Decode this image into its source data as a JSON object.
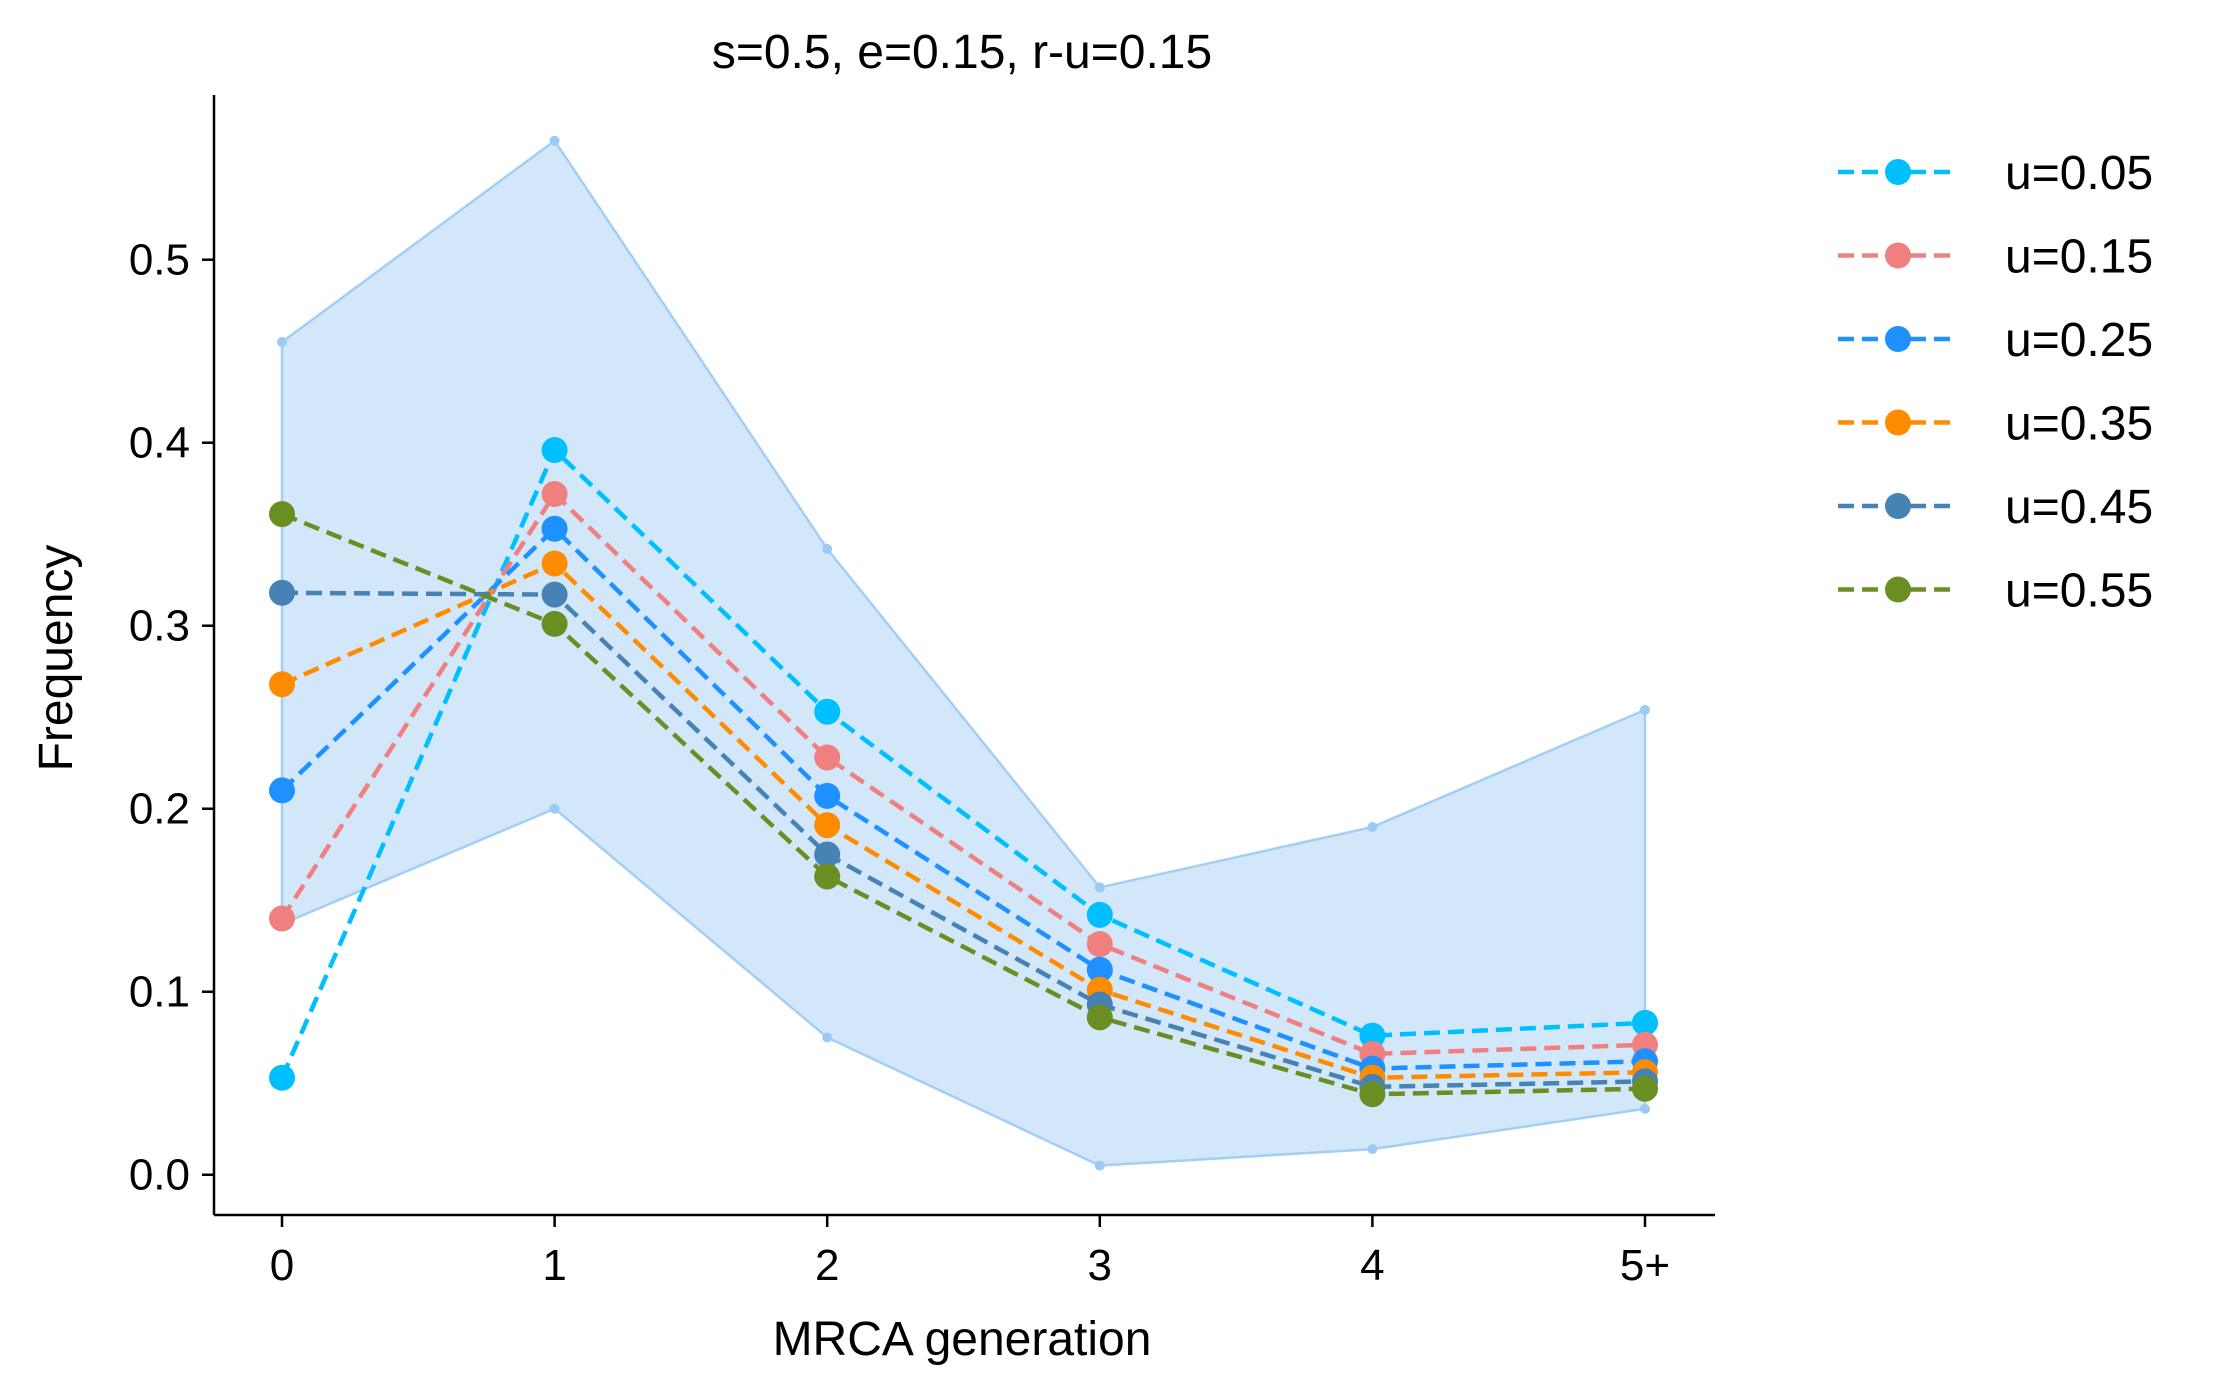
{
  "chart_data": {
    "type": "line",
    "title": "s=0.5, e=0.15, r-u=0.15",
    "xlabel": "MRCA generation",
    "ylabel": "Frequency",
    "categories": [
      "0",
      "1",
      "2",
      "3",
      "4",
      "5+"
    ],
    "ylim": [
      -0.022,
      0.59
    ],
    "yticks": [
      "0.0",
      "0.1",
      "0.2",
      "0.3",
      "0.4",
      "0.5"
    ],
    "grid": false,
    "legend_position": "outside-right",
    "band": {
      "color": "#9ccaf4",
      "upper": [
        0.455,
        0.565,
        0.342,
        0.157,
        0.19,
        0.254
      ],
      "lower": [
        0.137,
        0.2,
        0.075,
        0.005,
        0.014,
        0.036
      ]
    },
    "series": [
      {
        "name": "u=0.05",
        "color": "#00bfff",
        "values": [
          0.053,
          0.396,
          0.253,
          0.142,
          0.076,
          0.083
        ]
      },
      {
        "name": "u=0.15",
        "color": "#f08080",
        "values": [
          0.14,
          0.372,
          0.228,
          0.126,
          0.066,
          0.071
        ]
      },
      {
        "name": "u=0.25",
        "color": "#1e90ff",
        "values": [
          0.21,
          0.353,
          0.207,
          0.112,
          0.058,
          0.062
        ]
      },
      {
        "name": "u=0.35",
        "color": "#ff8c00",
        "values": [
          0.268,
          0.334,
          0.191,
          0.101,
          0.053,
          0.056
        ]
      },
      {
        "name": "u=0.45",
        "color": "#4682b4",
        "values": [
          0.318,
          0.317,
          0.175,
          0.093,
          0.048,
          0.051
        ]
      },
      {
        "name": "u=0.55",
        "color": "#6b8e23",
        "values": [
          0.361,
          0.301,
          0.163,
          0.086,
          0.044,
          0.047
        ]
      }
    ]
  }
}
